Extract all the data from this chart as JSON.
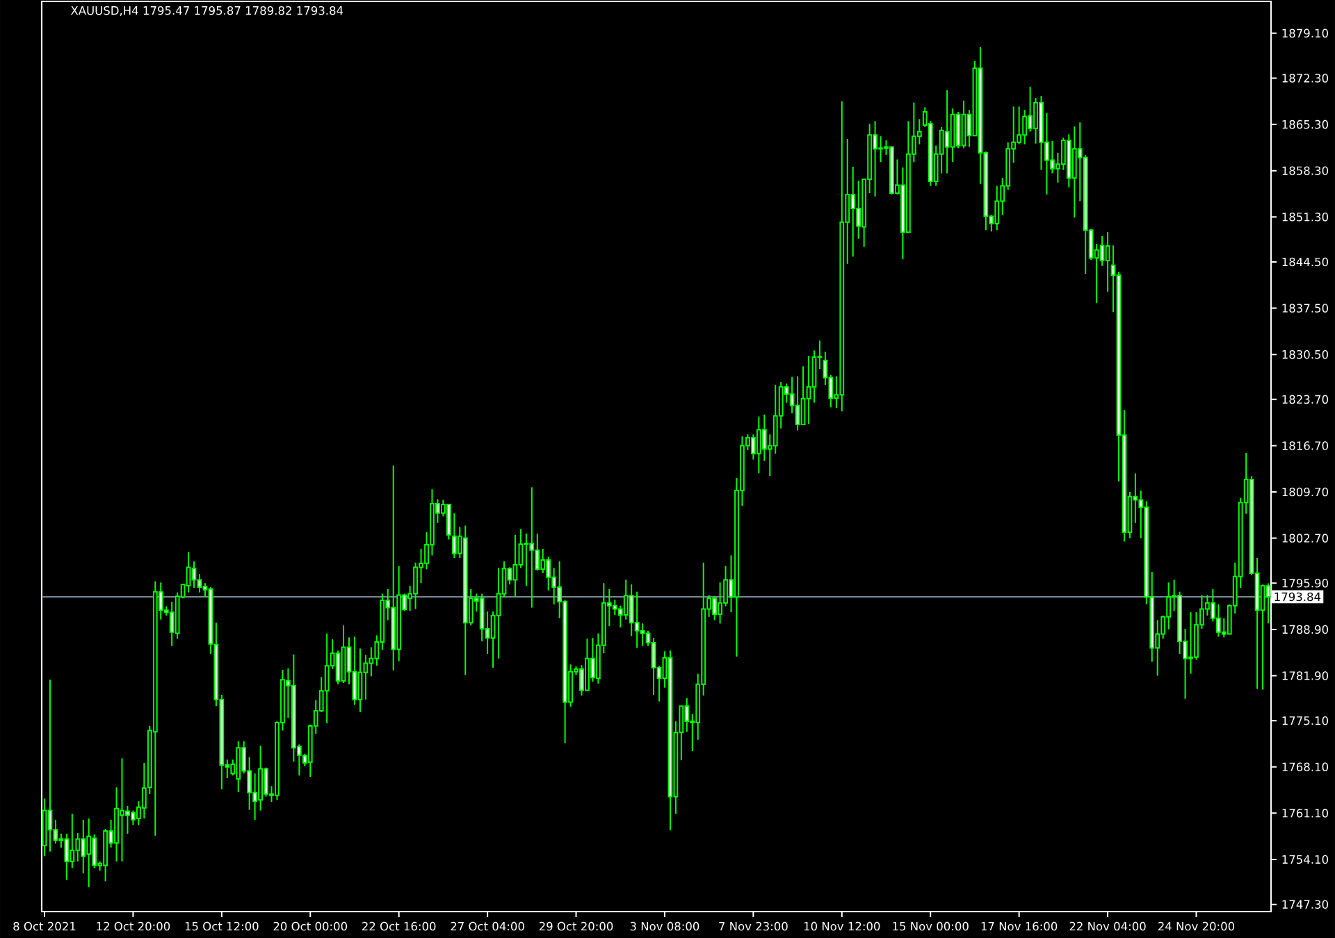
{
  "chart_data": {
    "type": "candlestick",
    "title": "XAUUSD,H4  1795.47 1795.87 1789.82 1793.84",
    "categories": [
      "8 Oct 2021",
      null,
      null,
      null,
      null,
      null,
      null,
      null,
      null,
      null,
      null,
      null,
      null,
      null,
      null,
      null,
      "12 Oct 20:00",
      null,
      null,
      null,
      null,
      null,
      null,
      null,
      null,
      null,
      null,
      null,
      null,
      null,
      null,
      null,
      "15 Oct 12:00",
      null,
      null,
      null,
      null,
      null,
      null,
      null,
      null,
      null,
      null,
      null,
      null,
      null,
      null,
      null,
      "20 Oct 00:00",
      null,
      null,
      null,
      null,
      null,
      null,
      null,
      null,
      null,
      null,
      null,
      null,
      null,
      null,
      null,
      "22 Oct 16:00",
      null,
      null,
      null,
      null,
      null,
      null,
      null,
      null,
      null,
      null,
      null,
      null,
      null,
      null,
      null,
      "27 Oct 04:00",
      null,
      null,
      null,
      null,
      null,
      null,
      null,
      null,
      null,
      null,
      null,
      null,
      null,
      null,
      null,
      "29 Oct 20:00",
      null,
      null,
      null,
      null,
      null,
      null,
      null,
      null,
      null,
      null,
      null,
      null,
      null,
      null,
      null,
      "3 Nov 08:00",
      null,
      null,
      null,
      null,
      null,
      null,
      null,
      null,
      null,
      null,
      null,
      null,
      null,
      null,
      null,
      "7 Nov 23:00",
      null,
      null,
      null,
      null,
      null,
      null,
      null,
      null,
      null,
      null,
      null,
      null,
      null,
      null,
      null,
      "10 Nov 12:00",
      null,
      null,
      null,
      null,
      null,
      null,
      null,
      null,
      null,
      null,
      null,
      null,
      null,
      null,
      null,
      "15 Nov 00:00",
      null,
      null,
      null,
      null,
      null,
      null,
      null,
      null,
      null,
      null,
      null,
      null,
      null,
      null,
      null,
      "17 Nov 16:00",
      null,
      null,
      null,
      null,
      null,
      null,
      null,
      null,
      null,
      null,
      null,
      null,
      null,
      null,
      null,
      "22 Nov 04:00",
      null,
      null,
      null,
      null,
      null,
      null,
      null,
      null,
      null,
      null,
      null,
      null,
      null,
      null,
      null,
      "24 Nov 20:00",
      null,
      null,
      null,
      null,
      null,
      null,
      null,
      null,
      null,
      null,
      null,
      null,
      null
    ],
    "ohlc": [
      [
        1756.2,
        1763.3,
        1754.6,
        1761.5
      ],
      [
        1761.5,
        1781.3,
        1755.3,
        1758.6
      ],
      [
        1758.6,
        1760.1,
        1756.5,
        1757.0
      ],
      [
        1757.0,
        1758.0,
        1755.9,
        1757.2
      ],
      [
        1757.2,
        1758.0,
        1751.0,
        1753.8
      ],
      [
        1753.8,
        1761.0,
        1752.8,
        1755.5
      ],
      [
        1755.5,
        1758.1,
        1753.8,
        1757.2
      ],
      [
        1757.2,
        1760.1,
        1752.0,
        1754.6
      ],
      [
        1754.9,
        1760.3,
        1749.9,
        1757.6
      ],
      [
        1757.3,
        1757.9,
        1752.8,
        1753.2
      ],
      [
        1753.2,
        1753.8,
        1752.4,
        1753.5
      ],
      [
        1753.2,
        1758.7,
        1750.8,
        1758.4
      ],
      [
        1758.4,
        1760.1,
        1755.9,
        1756.6
      ],
      [
        1756.6,
        1765.0,
        1753.8,
        1761.8
      ],
      [
        1760.8,
        1769.4,
        1753.8,
        1761.5
      ],
      [
        1761.4,
        1762.2,
        1758.0,
        1760.8
      ],
      [
        1761.2,
        1761.5,
        1759.3,
        1760.1
      ],
      [
        1760.3,
        1762.9,
        1759.3,
        1762.0
      ],
      [
        1761.9,
        1768.7,
        1760.3,
        1764.9
      ],
      [
        1765.0,
        1774.3,
        1764.0,
        1773.6
      ],
      [
        1773.4,
        1796.2,
        1757.7,
        1794.6
      ],
      [
        1794.6,
        1796.0,
        1790.4,
        1791.8
      ],
      [
        1791.8,
        1792.4,
        1791.0,
        1791.5
      ],
      [
        1791.5,
        1793.1,
        1786.4,
        1788.5
      ],
      [
        1788.3,
        1794.5,
        1787.5,
        1793.9
      ],
      [
        1793.8,
        1795.7,
        1793.6,
        1795.7
      ],
      [
        1795.5,
        1800.6,
        1794.5,
        1798.3
      ],
      [
        1798.1,
        1799.2,
        1795.2,
        1796.4
      ],
      [
        1796.4,
        1797.3,
        1794.5,
        1795.3
      ],
      [
        1795.4,
        1795.9,
        1793.8,
        1794.9
      ],
      [
        1795.0,
        1795.3,
        1785.2,
        1786.7
      ],
      [
        1786.6,
        1789.9,
        1777.3,
        1778.3
      ],
      [
        1778.3,
        1779.0,
        1764.7,
        1768.4
      ],
      [
        1768.4,
        1769.2,
        1766.4,
        1768.1
      ],
      [
        1767.1,
        1769.2,
        1766.8,
        1768.5
      ],
      [
        1766.3,
        1772.0,
        1764.3,
        1771.0
      ],
      [
        1771.0,
        1772.0,
        1767.1,
        1767.5
      ],
      [
        1767.5,
        1769.6,
        1761.6,
        1764.2
      ],
      [
        1764.2,
        1767.1,
        1760.1,
        1762.9
      ],
      [
        1763.1,
        1771.3,
        1761.5,
        1767.8
      ],
      [
        1767.8,
        1768.0,
        1763.6,
        1764.0
      ],
      [
        1764.0,
        1765.2,
        1762.8,
        1763.8
      ],
      [
        1763.8,
        1775.0,
        1763.1,
        1774.8
      ],
      [
        1774.8,
        1782.8,
        1773.6,
        1781.3
      ],
      [
        1781.1,
        1783.0,
        1775.5,
        1780.4
      ],
      [
        1780.4,
        1785.1,
        1768.9,
        1771.0
      ],
      [
        1771.2,
        1771.5,
        1766.8,
        1769.9
      ],
      [
        1769.8,
        1770.1,
        1768.2,
        1768.7
      ],
      [
        1768.8,
        1774.5,
        1766.6,
        1774.3
      ],
      [
        1774.3,
        1778.2,
        1773.1,
        1776.6
      ],
      [
        1776.6,
        1781.7,
        1776.4,
        1779.6
      ],
      [
        1779.6,
        1788.3,
        1774.7,
        1783.4
      ],
      [
        1783.4,
        1787.4,
        1782.9,
        1785.3
      ],
      [
        1785.3,
        1785.7,
        1780.6,
        1781.1
      ],
      [
        1781.1,
        1789.5,
        1780.8,
        1786.2
      ],
      [
        1786.2,
        1787.7,
        1780.6,
        1782.5
      ],
      [
        1782.5,
        1787.8,
        1777.5,
        1778.3
      ],
      [
        1778.3,
        1786.0,
        1776.4,
        1782.4
      ],
      [
        1782.4,
        1785.0,
        1778.3,
        1783.8
      ],
      [
        1783.8,
        1786.2,
        1781.8,
        1784.5
      ],
      [
        1784.5,
        1788.0,
        1783.4,
        1787.0
      ],
      [
        1787.0,
        1794.3,
        1785.8,
        1793.3
      ],
      [
        1793.3,
        1795.0,
        1790.3,
        1792.2
      ],
      [
        1792.2,
        1813.7,
        1782.7,
        1785.9
      ],
      [
        1785.9,
        1798.5,
        1784.1,
        1794.1
      ],
      [
        1794.1,
        1794.3,
        1791.7,
        1791.9
      ],
      [
        1793.6,
        1795.5,
        1791.7,
        1794.3
      ],
      [
        1794.3,
        1799.0,
        1792.0,
        1798.3
      ],
      [
        1798.3,
        1801.1,
        1795.9,
        1798.9
      ],
      [
        1798.9,
        1803.6,
        1798.0,
        1801.7
      ],
      [
        1801.7,
        1810.1,
        1800.1,
        1807.9
      ],
      [
        1807.9,
        1808.6,
        1805.0,
        1806.5
      ],
      [
        1806.5,
        1808.5,
        1806.0,
        1807.8
      ],
      [
        1807.8,
        1807.8,
        1802.5,
        1803.2
      ],
      [
        1803.0,
        1806.5,
        1799.7,
        1800.4
      ],
      [
        1800.4,
        1804.4,
        1799.7,
        1803.0
      ],
      [
        1802.7,
        1804.6,
        1782.0,
        1789.9
      ],
      [
        1789.9,
        1795.0,
        1789.5,
        1793.6
      ],
      [
        1793.6,
        1794.3,
        1791.6,
        1793.2
      ],
      [
        1793.6,
        1794.3,
        1787.1,
        1789.0
      ],
      [
        1789.0,
        1791.6,
        1785.2,
        1787.6
      ],
      [
        1787.6,
        1791.6,
        1783.1,
        1791.0
      ],
      [
        1791.0,
        1798.2,
        1784.5,
        1794.3
      ],
      [
        1794.3,
        1799.2,
        1793.8,
        1798.1
      ],
      [
        1798.1,
        1798.3,
        1795.7,
        1796.4
      ],
      [
        1796.4,
        1803.2,
        1793.8,
        1798.7
      ],
      [
        1798.7,
        1804.1,
        1798.2,
        1801.8
      ],
      [
        1801.8,
        1803.4,
        1795.5,
        1801.9
      ],
      [
        1801.9,
        1810.4,
        1792.2,
        1800.9
      ],
      [
        1800.9,
        1803.4,
        1797.8,
        1798.0
      ],
      [
        1798.0,
        1801.1,
        1797.4,
        1799.4
      ],
      [
        1799.4,
        1799.9,
        1794.8,
        1796.8
      ],
      [
        1796.8,
        1798.2,
        1792.7,
        1795.3
      ],
      [
        1795.3,
        1799.2,
        1790.6,
        1793.1
      ],
      [
        1793.1,
        1793.4,
        1771.7,
        1777.9
      ],
      [
        1777.9,
        1783.6,
        1777.2,
        1782.5
      ],
      [
        1782.5,
        1783.3,
        1782.0,
        1782.9
      ],
      [
        1782.9,
        1783.5,
        1778.9,
        1779.7
      ],
      [
        1779.7,
        1787.5,
        1779.7,
        1784.5
      ],
      [
        1784.5,
        1787.6,
        1781.0,
        1781.6
      ],
      [
        1781.5,
        1788.3,
        1780.7,
        1786.5
      ],
      [
        1786.5,
        1795.9,
        1785.3,
        1792.9
      ],
      [
        1792.9,
        1795.0,
        1789.4,
        1792.5
      ],
      [
        1792.5,
        1793.4,
        1791.1,
        1792.0
      ],
      [
        1792.0,
        1792.5,
        1789.2,
        1791.1
      ],
      [
        1791.1,
        1796.4,
        1790.4,
        1794.0
      ],
      [
        1794.0,
        1795.7,
        1787.9,
        1789.9
      ],
      [
        1789.9,
        1794.6,
        1786.1,
        1788.7
      ],
      [
        1788.7,
        1789.8,
        1786.4,
        1788.3
      ],
      [
        1788.3,
        1788.7,
        1786.4,
        1786.9
      ],
      [
        1786.9,
        1787.6,
        1779.0,
        1783.1
      ],
      [
        1783.1,
        1783.4,
        1778.0,
        1781.5
      ],
      [
        1781.5,
        1785.6,
        1780.1,
        1784.6
      ],
      [
        1784.6,
        1785.7,
        1758.5,
        1763.6
      ],
      [
        1763.6,
        1775.0,
        1761.0,
        1773.3
      ],
      [
        1773.3,
        1777.3,
        1769.1,
        1777.3
      ],
      [
        1777.3,
        1778.5,
        1773.4,
        1775.0
      ],
      [
        1775.0,
        1776.1,
        1770.5,
        1774.8
      ],
      [
        1774.8,
        1782.2,
        1772.2,
        1780.6
      ],
      [
        1780.6,
        1799.0,
        1778.9,
        1792.0
      ],
      [
        1792.0,
        1794.1,
        1790.8,
        1793.6
      ],
      [
        1793.6,
        1793.9,
        1790.3,
        1791.2
      ],
      [
        1791.2,
        1796.0,
        1789.8,
        1792.9
      ],
      [
        1792.9,
        1798.5,
        1792.4,
        1796.4
      ],
      [
        1796.4,
        1800.1,
        1791.5,
        1793.8
      ],
      [
        1793.8,
        1811.8,
        1784.8,
        1809.9
      ],
      [
        1809.9,
        1818.1,
        1807.6,
        1816.7
      ],
      [
        1816.7,
        1818.4,
        1816.0,
        1817.9
      ],
      [
        1817.9,
        1818.4,
        1814.6,
        1815.5
      ],
      [
        1815.5,
        1821.1,
        1812.5,
        1819.1
      ],
      [
        1819.1,
        1821.4,
        1814.4,
        1816.2
      ],
      [
        1816.2,
        1818.4,
        1812.1,
        1816.7
      ],
      [
        1816.7,
        1825.9,
        1815.5,
        1821.2
      ],
      [
        1821.2,
        1826.3,
        1819.3,
        1825.6
      ],
      [
        1825.6,
        1826.1,
        1823.2,
        1824.5
      ],
      [
        1824.5,
        1827.1,
        1821.6,
        1822.8
      ],
      [
        1822.8,
        1827.2,
        1819.0,
        1819.9
      ],
      [
        1819.9,
        1828.7,
        1819.9,
        1823.8
      ],
      [
        1823.8,
        1830.3,
        1820.0,
        1825.6
      ],
      [
        1825.6,
        1831.1,
        1823.2,
        1830.1
      ],
      [
        1830.1,
        1832.6,
        1828.3,
        1830.2
      ],
      [
        1829.6,
        1830.9,
        1825.9,
        1827.0
      ],
      [
        1827.0,
        1827.4,
        1822.5,
        1823.9
      ],
      [
        1823.9,
        1827.2,
        1822.4,
        1824.4
      ],
      [
        1824.4,
        1868.8,
        1821.9,
        1850.5
      ],
      [
        1850.5,
        1863.1,
        1844.2,
        1854.7
      ],
      [
        1854.7,
        1858.9,
        1845.3,
        1852.6
      ],
      [
        1852.6,
        1856.8,
        1848.0,
        1849.9
      ],
      [
        1849.8,
        1857.0,
        1846.8,
        1857.0
      ],
      [
        1857.0,
        1865.4,
        1854.9,
        1863.7
      ],
      [
        1863.7,
        1865.8,
        1854.4,
        1861.6
      ],
      [
        1861.6,
        1863.5,
        1859.6,
        1861.7
      ],
      [
        1861.7,
        1862.9,
        1860.7,
        1861.9
      ],
      [
        1861.9,
        1861.9,
        1854.7,
        1854.9
      ],
      [
        1854.9,
        1860.0,
        1854.7,
        1856.1
      ],
      [
        1856.1,
        1858.8,
        1844.9,
        1849.0
      ],
      [
        1849.0,
        1865.8,
        1849.0,
        1860.8
      ],
      [
        1860.8,
        1868.6,
        1859.6,
        1863.5
      ],
      [
        1863.5,
        1866.1,
        1862.3,
        1864.2
      ],
      [
        1865.2,
        1867.9,
        1864.9,
        1867.2
      ],
      [
        1865.4,
        1865.8,
        1856.0,
        1856.7
      ],
      [
        1856.7,
        1862.1,
        1856.0,
        1860.8
      ],
      [
        1860.8,
        1864.9,
        1857.9,
        1864.4
      ],
      [
        1864.2,
        1870.5,
        1857.9,
        1861.9
      ],
      [
        1861.9,
        1867.7,
        1859.6,
        1866.8
      ],
      [
        1866.8,
        1867.2,
        1861.7,
        1862.1
      ],
      [
        1862.1,
        1868.9,
        1861.7,
        1866.8
      ],
      [
        1866.8,
        1867.5,
        1861.9,
        1863.6
      ],
      [
        1863.6,
        1874.9,
        1863.6,
        1873.8
      ],
      [
        1873.8,
        1877.0,
        1856.3,
        1861.0
      ],
      [
        1861.0,
        1861.2,
        1849.3,
        1851.4
      ],
      [
        1851.4,
        1851.6,
        1849.1,
        1850.3
      ],
      [
        1850.3,
        1856.0,
        1849.3,
        1853.7
      ],
      [
        1853.7,
        1857.2,
        1851.6,
        1856.0
      ],
      [
        1856.0,
        1862.6,
        1855.4,
        1861.6
      ],
      [
        1861.6,
        1868.0,
        1859.5,
        1862.6
      ],
      [
        1862.6,
        1868.0,
        1862.3,
        1863.7
      ],
      [
        1863.7,
        1867.5,
        1862.3,
        1866.5
      ],
      [
        1866.6,
        1871.0,
        1864.2,
        1864.7
      ],
      [
        1864.7,
        1869.3,
        1862.4,
        1868.6
      ],
      [
        1868.6,
        1869.6,
        1858.4,
        1862.6
      ],
      [
        1862.6,
        1867.0,
        1854.7,
        1859.9
      ],
      [
        1859.9,
        1862.8,
        1857.9,
        1858.6
      ],
      [
        1858.6,
        1861.0,
        1856.5,
        1859.3
      ],
      [
        1859.3,
        1863.3,
        1858.4,
        1862.9
      ],
      [
        1862.9,
        1863.8,
        1855.8,
        1857.2
      ],
      [
        1857.2,
        1865.0,
        1851.2,
        1861.6
      ],
      [
        1861.6,
        1865.6,
        1853.7,
        1860.3
      ],
      [
        1860.3,
        1860.7,
        1842.7,
        1849.3
      ],
      [
        1849.3,
        1849.5,
        1844.8,
        1845.1
      ],
      [
        1845.1,
        1847.2,
        1838.3,
        1846.3
      ],
      [
        1847.0,
        1848.4,
        1843.9,
        1844.7
      ],
      [
        1844.7,
        1849.0,
        1840.0,
        1846.9
      ],
      [
        1844.0,
        1847.0,
        1836.9,
        1842.5
      ],
      [
        1842.5,
        1843.0,
        1811.3,
        1818.3
      ],
      [
        1818.3,
        1822.1,
        1802.2,
        1803.6
      ],
      [
        1803.6,
        1809.7,
        1802.7,
        1809.0
      ],
      [
        1809.0,
        1812.5,
        1805.0,
        1808.5
      ],
      [
        1808.5,
        1809.9,
        1802.7,
        1807.4
      ],
      [
        1807.4,
        1808.3,
        1792.7,
        1793.8
      ],
      [
        1793.8,
        1797.6,
        1784.0,
        1786.1
      ],
      [
        1786.1,
        1790.3,
        1781.9,
        1788.2
      ],
      [
        1788.2,
        1791.0,
        1787.5,
        1790.8
      ],
      [
        1790.8,
        1796.0,
        1788.9,
        1793.8
      ],
      [
        1793.8,
        1796.4,
        1791.7,
        1794.0
      ],
      [
        1794.0,
        1794.6,
        1785.2,
        1787.1
      ],
      [
        1787.1,
        1789.0,
        1778.4,
        1784.5
      ],
      [
        1784.5,
        1791.5,
        1782.2,
        1784.7
      ],
      [
        1784.7,
        1791.5,
        1784.3,
        1789.6
      ],
      [
        1789.6,
        1794.1,
        1789.0,
        1792.0
      ],
      [
        1792.0,
        1794.1,
        1791.0,
        1792.9
      ],
      [
        1792.9,
        1795.0,
        1790.1,
        1790.6
      ],
      [
        1790.6,
        1792.7,
        1787.8,
        1788.5
      ],
      [
        1788.5,
        1790.6,
        1787.7,
        1788.2
      ],
      [
        1788.2,
        1792.7,
        1788.2,
        1792.5
      ],
      [
        1792.5,
        1799.0,
        1791.3,
        1796.9
      ],
      [
        1796.9,
        1808.8,
        1795.2,
        1808.1
      ],
      [
        1808.1,
        1815.6,
        1806.4,
        1811.6
      ],
      [
        1811.6,
        1812.1,
        1797.1,
        1797.4
      ],
      [
        1797.4,
        1799.7,
        1779.9,
        1791.8
      ],
      [
        1791.8,
        1795.7,
        1779.8,
        1795.5
      ],
      [
        1795.47,
        1795.87,
        1789.82,
        1793.84
      ]
    ],
    "color": "#00ff00",
    "colors": [
      "#000000",
      "#ffffff",
      "#ffffff",
      "#000000",
      "#ffffff",
      "#000000",
      "#000000",
      "#ffffff",
      "#000000",
      "#ffffff",
      "#000000",
      "#000000",
      "#ffffff",
      "#000000",
      "#000000",
      "#ffffff",
      "#ffffff",
      "#000000",
      "#000000",
      "#000000",
      "#000000",
      "#ffffff",
      "#ffffff",
      "#ffffff",
      "#000000",
      "#000000",
      "#000000",
      "#ffffff",
      "#ffffff",
      "#ffffff",
      "#ffffff",
      "#ffffff",
      "#ffffff",
      "#ffffff",
      "#000000",
      "#000000",
      "#ffffff",
      "#ffffff",
      "#ffffff",
      "#000000",
      "#ffffff",
      "#ffffff",
      "#000000",
      "#000000",
      "#ffffff",
      "#ffffff",
      "#ffffff",
      "#ffffff",
      "#000000",
      "#000000",
      "#000000",
      "#000000",
      "#000000",
      "#ffffff",
      "#000000",
      "#ffffff",
      "#ffffff",
      "#000000",
      "#000000",
      "#000000",
      "#000000",
      "#000000",
      "#ffffff",
      "#ffffff",
      "#000000",
      "#ffffff",
      "#000000",
      "#000000",
      "#000000",
      "#000000",
      "#000000",
      "#ffffff",
      "#000000",
      "#ffffff",
      "#ffffff",
      "#000000",
      "#ffffff",
      "#000000",
      "#ffffff",
      "#ffffff",
      "#ffffff",
      "#000000",
      "#000000",
      "#000000",
      "#ffffff",
      "#000000",
      "#000000",
      "#000000",
      "#ffffff",
      "#ffffff",
      "#000000",
      "#ffffff",
      "#ffffff",
      "#ffffff",
      "#ffffff",
      "#000000",
      "#000000",
      "#ffffff",
      "#000000",
      "#ffffff",
      "#000000",
      "#000000",
      "#ffffff",
      "#ffffff",
      "#ffffff",
      "#000000",
      "#ffffff",
      "#ffffff",
      "#ffffff",
      "#ffffff",
      "#ffffff",
      "#ffffff",
      "#000000",
      "#ffffff",
      "#000000",
      "#000000",
      "#ffffff",
      "#ffffff",
      "#000000",
      "#000000",
      "#000000",
      "#ffffff",
      "#000000",
      "#000000",
      "#ffffff",
      "#000000",
      "#000000",
      "#000000",
      "#ffffff",
      "#000000",
      "#ffffff",
      "#000000",
      "#000000",
      "#000000",
      "#ffffff",
      "#ffffff",
      "#ffffff",
      "#000000",
      "#000000",
      "#000000",
      "#000000",
      "#ffffff",
      "#ffffff",
      "#000000",
      "#000000",
      "#000000",
      "#ffffff",
      "#ffffff",
      "#000000",
      "#000000",
      "#ffffff",
      "#000000",
      "#000000",
      "#ffffff",
      "#000000",
      "#ffffff",
      "#000000",
      "#000000",
      "#000000",
      "#000000",
      "#ffffff",
      "#000000",
      "#000000",
      "#ffffff",
      "#000000",
      "#ffffff",
      "#000000",
      "#ffffff",
      "#000000",
      "#ffffff",
      "#ffffff",
      "#ffffff",
      "#000000",
      "#000000",
      "#000000",
      "#000000",
      "#000000",
      "#000000",
      "#ffffff",
      "#000000",
      "#ffffff",
      "#ffffff",
      "#ffffff",
      "#000000",
      "#000000",
      "#ffffff",
      "#000000",
      "#ffffff",
      "#ffffff",
      "#ffffff",
      "#000000",
      "#ffffff",
      "#000000",
      "#ffffff",
      "#ffffff",
      "#ffffff",
      "#000000",
      "#ffffff",
      "#ffffff",
      "#ffffff",
      "#ffffff",
      "#000000",
      "#000000",
      "#000000",
      "#000000",
      "#ffffff",
      "#ffffff",
      "#000000",
      "#000000",
      "#000000",
      "#000000",
      "#ffffff",
      "#ffffff",
      "#ffffff",
      "#000000",
      "#000000",
      "#000000",
      "#000000",
      "#ffffff",
      "#ffffff",
      "#000000",
      "#ffffff"
    ],
    "ylim": [
      1746.2,
      1883.9
    ],
    "yticks": [
      {
        "value": 1747.3,
        "label": "1747.30"
      },
      {
        "value": 1754.1,
        "label": "1754.10"
      },
      {
        "value": 1761.1,
        "label": "1761.10"
      },
      {
        "value": 1768.1,
        "label": "1768.10"
      },
      {
        "value": 1775.1,
        "label": "1775.10"
      },
      {
        "value": 1781.9,
        "label": "1781.90"
      },
      {
        "value": 1788.9,
        "label": "1788.90"
      },
      {
        "value": 1795.9,
        "label": "1795.90"
      },
      {
        "value": 1802.7,
        "label": "1802.70"
      },
      {
        "value": 1809.7,
        "label": "1809.70"
      },
      {
        "value": 1816.7,
        "label": "1816.70"
      },
      {
        "value": 1823.7,
        "label": "1823.70"
      },
      {
        "value": 1830.5,
        "label": "1830.50"
      },
      {
        "value": 1837.5,
        "label": "1837.50"
      },
      {
        "value": 1844.5,
        "label": "1844.50"
      },
      {
        "value": 1851.3,
        "label": "1851.30"
      },
      {
        "value": 1858.3,
        "label": "1858.30"
      },
      {
        "value": 1865.3,
        "label": "1865.30"
      },
      {
        "value": 1872.3,
        "label": "1872.30"
      },
      {
        "value": 1879.1,
        "label": "1879.10"
      }
    ],
    "ref_lines": [
      {
        "axis": "y",
        "value": 1793.84,
        "label": "1793.84",
        "color": "#778899"
      }
    ]
  }
}
